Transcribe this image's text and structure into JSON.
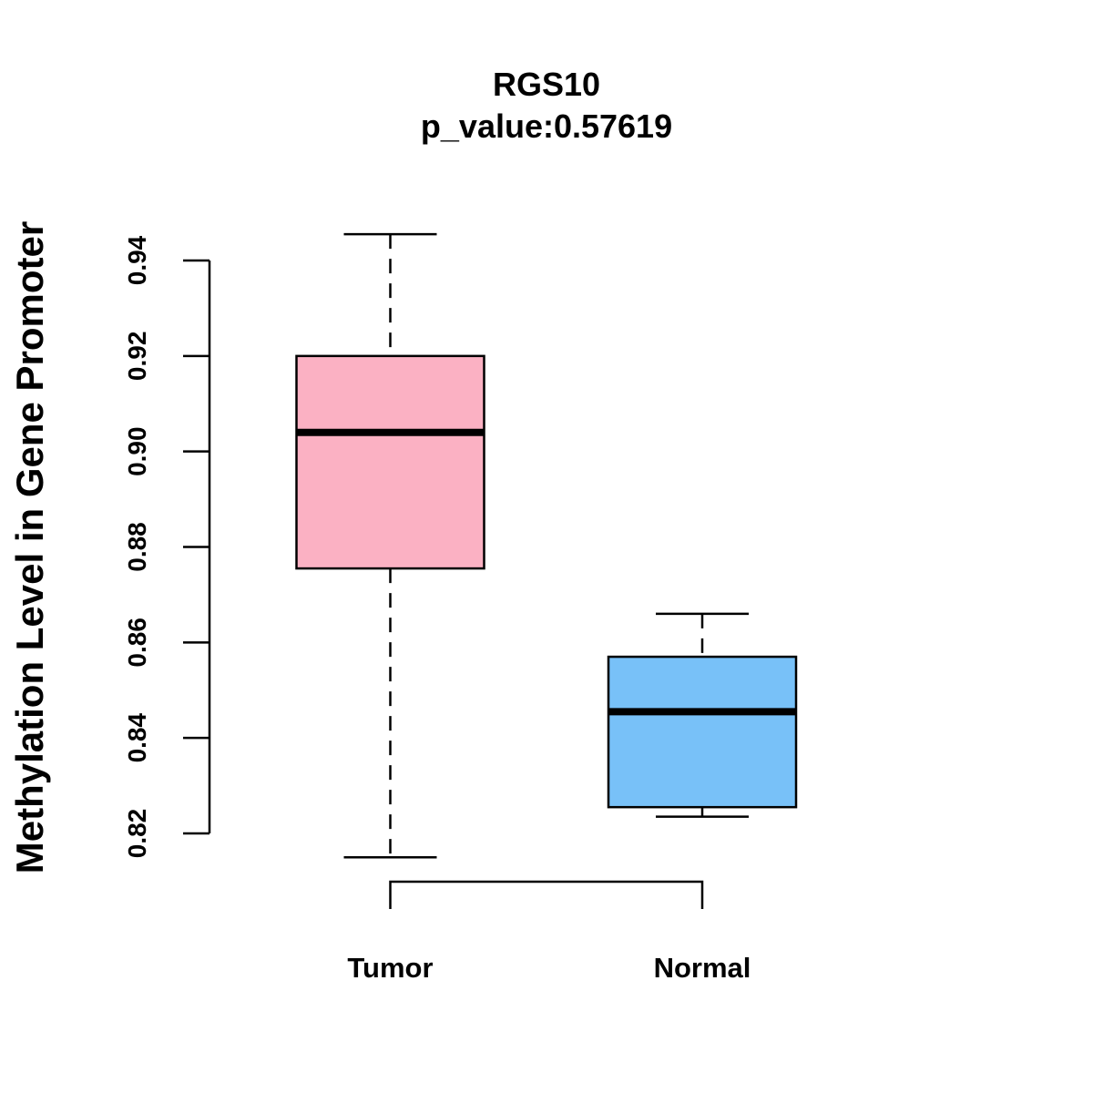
{
  "chart_data": {
    "type": "boxplot",
    "title": "RGS10",
    "subtitle": "p_value:0.57619",
    "xlabel": "",
    "ylabel": "Methylation Level in Gene Promoter",
    "ylim": [
      0.815,
      0.9455
    ],
    "yticks": [
      "0.82",
      "0.84",
      "0.86",
      "0.88",
      "0.90",
      "0.92",
      "0.94"
    ],
    "ytick_values": [
      0.82,
      0.84,
      0.86,
      0.88,
      0.9,
      0.92,
      0.94
    ],
    "categories": [
      "Tumor",
      "Normal"
    ],
    "series": [
      {
        "name": "Tumor",
        "min": 0.815,
        "q1": 0.8755,
        "median": 0.904,
        "q3": 0.92,
        "max": 0.9455,
        "color": "#FBB1C3"
      },
      {
        "name": "Normal",
        "min": 0.8235,
        "q1": 0.8255,
        "median": 0.8455,
        "q3": 0.857,
        "max": 0.866,
        "color": "#78C1F8"
      }
    ],
    "significance_bracket": {
      "from": "Tumor",
      "to": "Normal",
      "label": ""
    },
    "grid": false,
    "legend": "none"
  }
}
